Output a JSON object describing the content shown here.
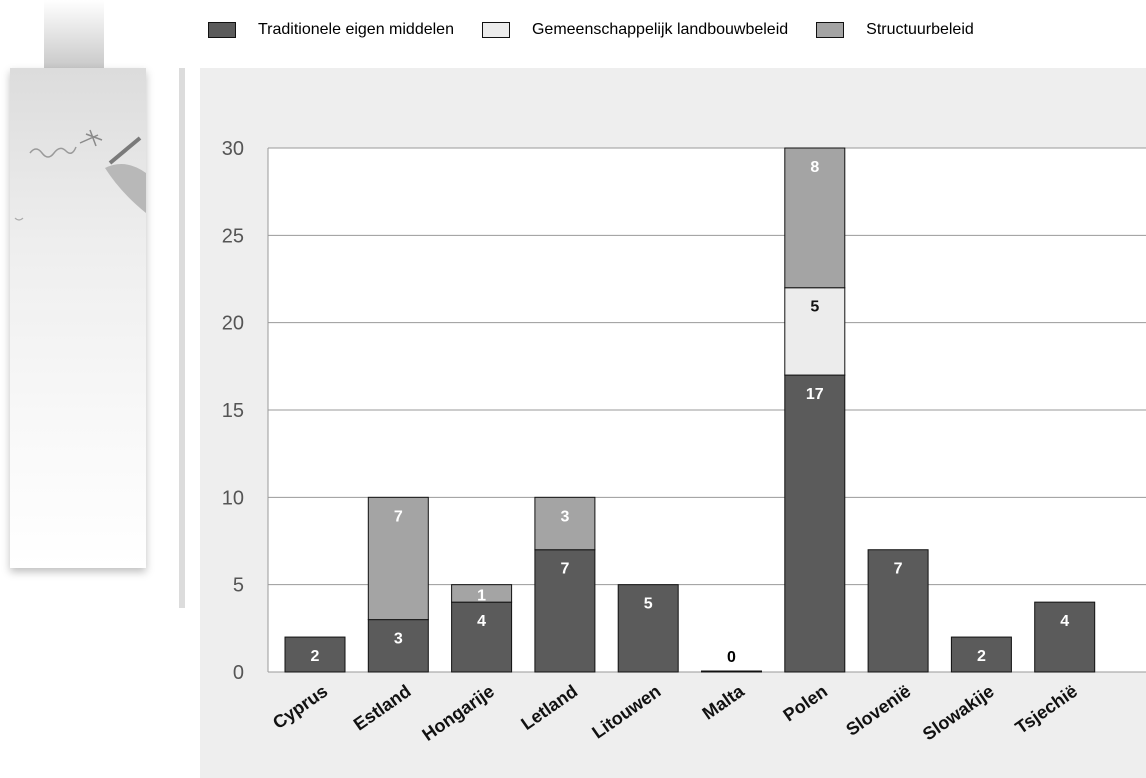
{
  "colors": {
    "traditional": "#5b5b5b",
    "agricultural": "#ececec",
    "structural": "#a4a4a4",
    "plot_bg": "#ffffff",
    "panel_bg": "#eeeeee",
    "grid": "#9a9a9a"
  },
  "legend": {
    "items": [
      {
        "label": "Traditionele eigen middelen",
        "color": "#5b5b5b"
      },
      {
        "label": "Gemeenschappelijk landbouwbeleid",
        "color": "#ececec"
      },
      {
        "label": "Structuurbeleid",
        "color": "#a4a4a4"
      }
    ]
  },
  "chart_data": {
    "type": "bar",
    "stacked": true,
    "categories": [
      "Cyprus",
      "Estland",
      "Hongarije",
      "Letland",
      "Litouwen",
      "Malta",
      "Polen",
      "Slovenië",
      "Slowakije",
      "Tsjechië"
    ],
    "series": [
      {
        "name": "Traditionele eigen middelen",
        "values": [
          2,
          3,
          4,
          7,
          5,
          0,
          17,
          7,
          2,
          4
        ],
        "color": "#5b5b5b"
      },
      {
        "name": "Gemeenschappelijk landbouwbeleid",
        "values": [
          0,
          0,
          0,
          0,
          0,
          0,
          5,
          0,
          0,
          0
        ],
        "color": "#ececec"
      },
      {
        "name": "Structuurbeleid",
        "values": [
          0,
          7,
          1,
          3,
          0,
          0,
          8,
          0,
          0,
          0
        ],
        "color": "#a4a4a4"
      }
    ],
    "data_labels": [
      [
        "2",
        "3",
        "4",
        "7",
        "5",
        "0",
        "17",
        "7",
        "2",
        "4"
      ],
      [
        "",
        "",
        "",
        "",
        "",
        "",
        "5",
        "",
        "",
        ""
      ],
      [
        "",
        "7",
        "1",
        "3",
        "",
        "",
        "8",
        "",
        "",
        ""
      ]
    ],
    "yticks": [
      0,
      5,
      10,
      15,
      20,
      25,
      30
    ],
    "ylim": [
      0,
      30
    ],
    "grid": true,
    "legend_position": "top"
  }
}
